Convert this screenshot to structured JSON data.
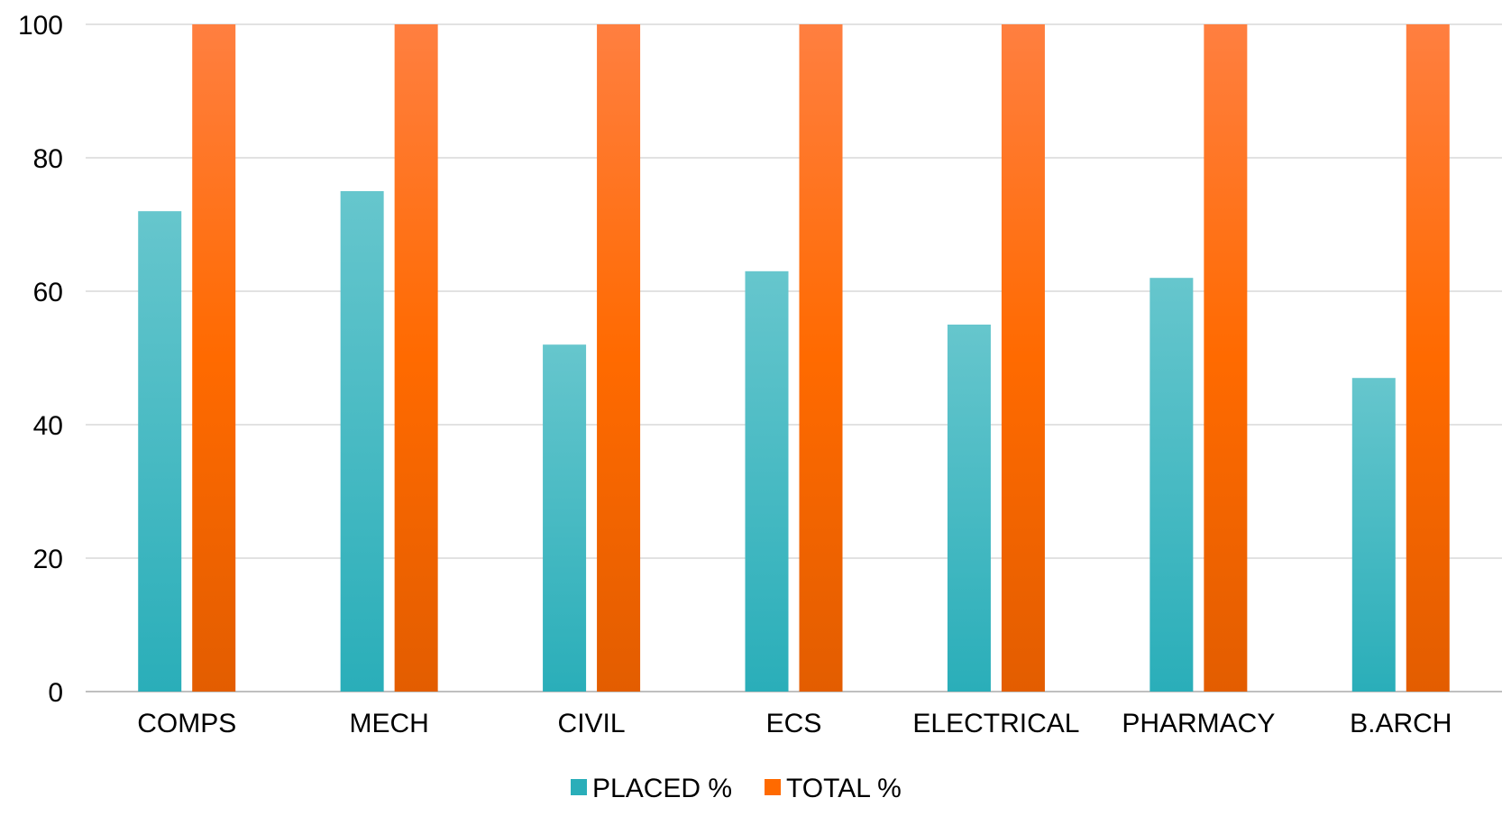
{
  "chart_data": {
    "type": "bar",
    "title": "",
    "xlabel": "",
    "ylabel": "",
    "categories": [
      "COMPS",
      "MECH",
      "CIVIL",
      "ECS",
      "ELECTRICAL",
      "PHARMACY",
      "B.ARCH"
    ],
    "series": [
      {
        "name": "PLACED %",
        "values": [
          72,
          75,
          52,
          63,
          55,
          62,
          47
        ]
      },
      {
        "name": "TOTAL %",
        "values": [
          100,
          100,
          100,
          100,
          100,
          100,
          100
        ]
      }
    ],
    "ylim": [
      0,
      100
    ],
    "yticks": [
      0,
      20,
      40,
      60,
      80,
      100
    ],
    "grid": true,
    "legend_position": "bottom-center",
    "colors": {
      "placed_top": "#66c6cd",
      "placed_bottom": "#2aaeb9",
      "total_top": "#ff7f40",
      "total_mid": "#ff6a00",
      "total_bottom": "#e35d00",
      "grid": "#d9d9d9",
      "axis": "#bfbfbf",
      "text": "#000000"
    }
  }
}
